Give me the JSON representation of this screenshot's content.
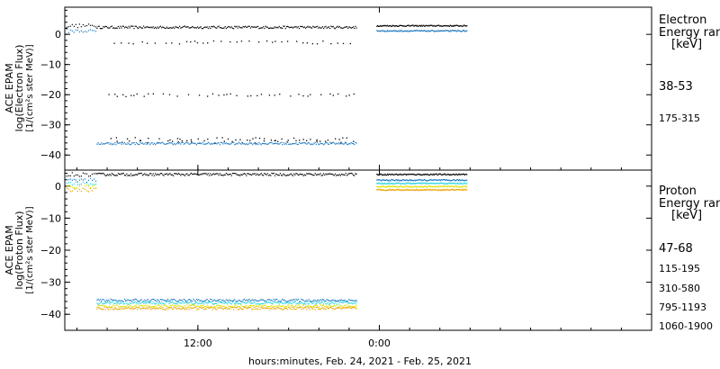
{
  "chart_data": {
    "type": "scatter",
    "xlabel": "hours:minutes, Feb. 24, 2021 - Feb. 25, 2021",
    "x_ticks": [
      {
        "label": "12:00",
        "hour": 12
      },
      {
        "label": "0:00",
        "hour": 24
      }
    ],
    "xlim_hours": [
      3.2,
      42.0
    ],
    "panels": [
      {
        "id": "electron",
        "ylabel_lines": [
          "ACE EPAM",
          "log(Electron Flux)",
          "[1/(cm²s ster MeV)]"
        ],
        "ylim": [
          -45,
          9
        ],
        "yticks": [
          0,
          -10,
          -20,
          -30,
          -40
        ],
        "legend_title": [
          "Electron",
          "Energy ran",
          "[keV]"
        ],
        "series": [
          {
            "name": "38-53",
            "color": "#000000",
            "main": 2.5,
            "spikes": [
              -2.5,
              -20,
              -35.5,
              -34.5
            ],
            "fill": 3.0
          },
          {
            "name": "175-315",
            "color": "#1a78c2",
            "main": -36.0,
            "fill": 1.3
          }
        ]
      },
      {
        "id": "proton",
        "ylabel_lines": [
          "ACE EPAM",
          "log(Proton Flux)",
          "[1/(cm²s ster MeV)]"
        ],
        "ylim": [
          -45,
          5
        ],
        "yticks": [
          0,
          -10,
          -20,
          -30,
          -40
        ],
        "legend_title": [
          "Proton",
          "Energy ran",
          "[keV]"
        ],
        "series": [
          {
            "name": "47-68",
            "color": "#000000",
            "main": 3.8,
            "fill": 3.8
          },
          {
            "name": "115-195",
            "color": "#1a78c2",
            "main": -35.5,
            "fill": 2.0
          },
          {
            "name": "310-580",
            "color": "#22d3e0",
            "main": -36.3,
            "fill": 1.0
          },
          {
            "name": "795-1193",
            "color": "#e0e000",
            "main": -37.3,
            "fill": 0.0
          },
          {
            "name": "1060-1900",
            "color": "#e8a000",
            "main": -38.0,
            "fill": -1.0
          }
        ]
      }
    ],
    "data_gaps_hours": [
      [
        22.5,
        23.8
      ],
      [
        29.8,
        42.0
      ]
    ]
  },
  "colors": {
    "axis": "#000000",
    "background": "#ffffff"
  }
}
